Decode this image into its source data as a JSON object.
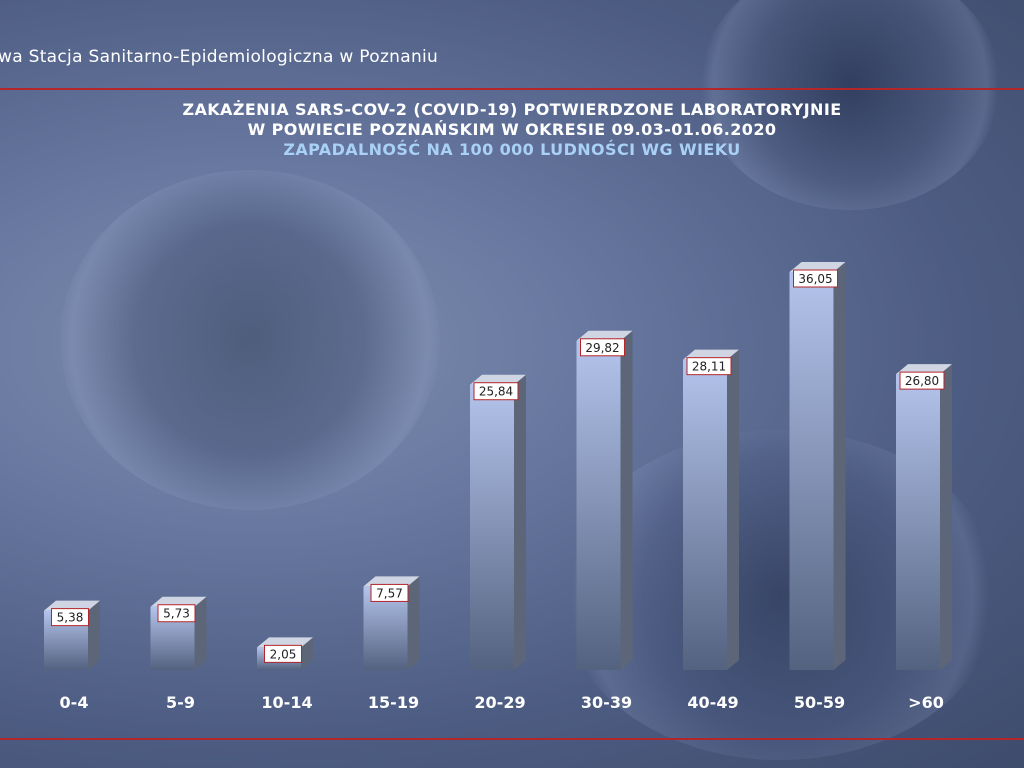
{
  "header": {
    "text": "wa Stacja Sanitarno-Epidemiologiczna w Poznaniu"
  },
  "chart_data": {
    "type": "bar",
    "title": "ZAKAŻENIA SARS-COV-2 (COVID-19) POTWIERDZONE LABORATORYJNIE",
    "title_line2": "W POWIECIE POZNAŃSKIM W OKRESIE 09.03-01.06.2020",
    "subtitle": "ZAPADALNOŚĆ NA 100 000 LUDNOŚCI WG WIEKU",
    "categories": [
      "0-4",
      "5-9",
      "10-14",
      "15-19",
      "20-29",
      "30-39",
      "40-49",
      "50-59",
      ">60"
    ],
    "values": [
      5.38,
      5.73,
      2.05,
      7.57,
      25.84,
      29.82,
      28.11,
      36.05,
      26.8
    ],
    "value_labels": [
      "5,38",
      "5,73",
      "2,05",
      "7,57",
      "25,84",
      "29,82",
      "28,11",
      "36,05",
      "26,80"
    ],
    "xlabel": "",
    "ylabel": "",
    "ylim": [
      0,
      36.05
    ],
    "grid": false,
    "style": "3d-bars",
    "colors": {
      "bar_front_top": "#b4c4ec",
      "bar_front_bottom": "#53627f",
      "bar_side": "#5c6678",
      "bar_top": "#cfd5e3",
      "label_border": "#b3262a",
      "category_text": "#ffffff"
    }
  }
}
